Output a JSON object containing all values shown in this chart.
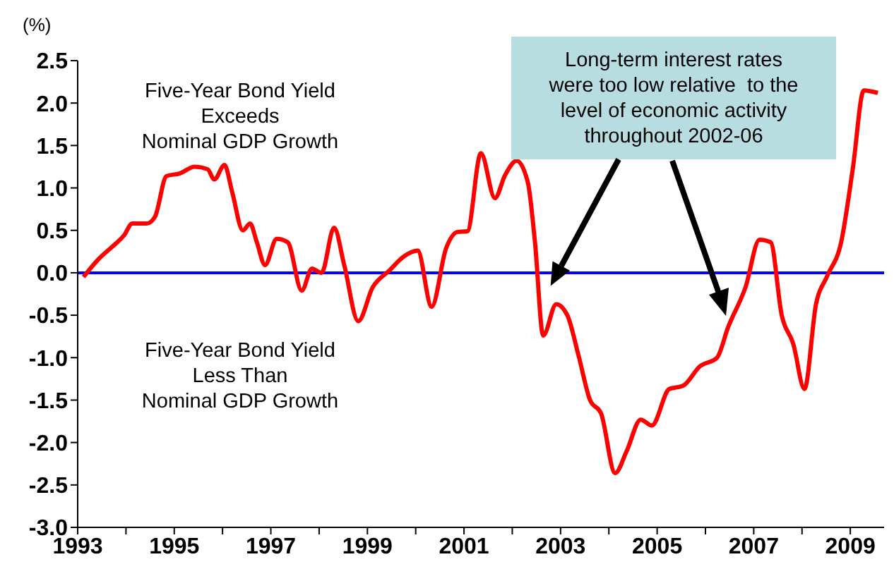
{
  "chart_data": {
    "type": "line",
    "ylabel": "(%)",
    "x": [
      1993.12,
      1993.43,
      1993.78,
      1993.96,
      1994.13,
      1994.43,
      1994.6,
      1994.84,
      1995.11,
      1995.42,
      1995.69,
      1995.83,
      1996.04,
      1996.2,
      1996.42,
      1996.57,
      1996.71,
      1996.88,
      1997.12,
      1997.35,
      1997.64,
      1997.85,
      1998.05,
      1998.31,
      1998.52,
      1998.81,
      1999.11,
      1999.46,
      1999.75,
      2000.04,
      2000.33,
      2000.63,
      2000.86,
      2001.07,
      2001.35,
      2001.64,
      2001.85,
      2002.09,
      2002.32,
      2002.47,
      2002.64,
      2002.91,
      2003.14,
      2003.37,
      2003.61,
      2003.84,
      2004.13,
      2004.37,
      2004.66,
      2004.89,
      2005.25,
      2005.54,
      2005.89,
      2006.24,
      2006.47,
      2006.83,
      2007.12,
      2007.35,
      2007.58,
      2007.82,
      2008.05,
      2008.29,
      2008.52,
      2008.81,
      2009.05,
      2009.28,
      2009.57
    ],
    "series": [
      {
        "color": "#ff0000",
        "values": [
          -0.05,
          0.16,
          0.34,
          0.44,
          0.58,
          0.58,
          0.66,
          1.14,
          1.17,
          1.25,
          1.22,
          1.1,
          1.27,
          0.95,
          0.5,
          0.58,
          0.36,
          0.09,
          0.4,
          0.36,
          -0.21,
          0.05,
          0.0,
          0.53,
          0.09,
          -0.57,
          -0.17,
          0.03,
          0.19,
          0.26,
          -0.4,
          0.29,
          0.48,
          0.49,
          1.41,
          0.88,
          1.15,
          1.32,
          1.07,
          0.36,
          -0.74,
          -0.37,
          -0.5,
          -0.97,
          -1.5,
          -1.66,
          -2.36,
          -2.1,
          -1.73,
          -1.8,
          -1.37,
          -1.33,
          -1.1,
          -1.0,
          -0.64,
          -0.17,
          0.39,
          0.36,
          -0.5,
          -0.84,
          -1.37,
          -0.37,
          -0.04,
          0.36,
          1.22,
          2.15,
          2.12
        ]
      }
    ],
    "xlim": [
      1993,
      2009.7
    ],
    "xticks": [
      1993,
      {
        "value": 1994,
        "label": null
      },
      1995,
      {
        "value": 1996,
        "label": null
      },
      1997,
      {
        "value": 1998,
        "label": null
      },
      1999,
      {
        "value": 2000,
        "label": null
      },
      2001,
      {
        "value": 2002,
        "label": null
      },
      2003,
      {
        "value": 2004,
        "label": null
      },
      2005,
      {
        "value": 2006,
        "label": null
      },
      2007,
      {
        "value": 2008,
        "label": null
      },
      2009
    ],
    "ylim": [
      -3.0,
      2.5
    ],
    "yticks": [
      {
        "value": 2.5,
        "label": "2.5"
      },
      {
        "value": 2.0,
        "label": "2.0"
      },
      {
        "value": 1.5,
        "label": "1.5"
      },
      {
        "value": 1.0,
        "label": "1.0"
      },
      {
        "value": 0.5,
        "label": "0.5"
      },
      {
        "value": 0,
        "label": "0.0"
      },
      {
        "value": -0.5,
        "label": "-0.5"
      },
      {
        "value": -1.0,
        "label": "-1.0"
      },
      {
        "value": -1.5,
        "label": "-1.5"
      },
      {
        "value": -2.0,
        "label": "-2.0"
      },
      {
        "value": -2.5,
        "label": "-2.5"
      },
      {
        "value": -3.0,
        "label": "-3.0"
      }
    ],
    "ref_lines": [
      {
        "axis": "y",
        "value": 0,
        "color": "#0000ff"
      }
    ],
    "grid": false,
    "legend": false,
    "marker": "none",
    "line_style": "solid",
    "annotations": [
      "Five-Year Bond Yield\nExceeds\nNominal GDP Growth",
      "Five-Year Bond Yield\nLess Than\nNominal GDP Growth",
      "Long-term interest rates\nwere too low relative  to the\nlevel of economic activity\nthroughout 2002-06"
    ]
  }
}
